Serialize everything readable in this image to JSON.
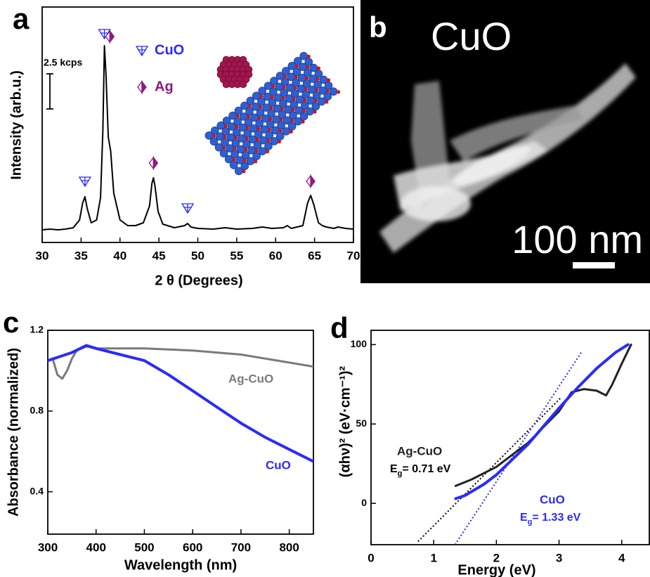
{
  "chart_data": [
    {
      "type": "line",
      "panel_label": "a",
      "x_label": "2 θ (Degrees)",
      "y_label": "Intensity (arb.u.)",
      "x": [
        30,
        31,
        32,
        33,
        34,
        34.8,
        35.2,
        35.5,
        35.8,
        36.3,
        37,
        37.5,
        37.8,
        38,
        38.2,
        38.5,
        38.8,
        39.2,
        40,
        41,
        42,
        43,
        43.8,
        44.1,
        44.3,
        44.5,
        44.9,
        45.5,
        47,
        48.3,
        48.7,
        49.1,
        50,
        52,
        53.5,
        55,
        57,
        58.3,
        59.5,
        61,
        61.5,
        62,
        63.5,
        64.1,
        64.5,
        64.9,
        65.5,
        66,
        66.5,
        67.5,
        68,
        69,
        70
      ],
      "values": [
        0.9,
        0.95,
        0.9,
        0.95,
        1.05,
        1.6,
        2.8,
        3.25,
        2.4,
        1.4,
        1.6,
        3.2,
        8,
        14,
        12,
        7.5,
        6.5,
        3.5,
        1.6,
        1.2,
        1.2,
        1.4,
        2.6,
        4.2,
        4.6,
        4.0,
        2.2,
        1.3,
        1.05,
        1.2,
        1.35,
        1.1,
        1.0,
        0.95,
        1.05,
        0.95,
        1.0,
        1.1,
        1.0,
        1.05,
        1.2,
        1.0,
        1.2,
        2.8,
        3.35,
        2.7,
        1.4,
        1.2,
        1.1,
        1.0,
        1.1,
        1.0,
        0.95
      ],
      "color": "#000000",
      "xlim": [
        30,
        70
      ],
      "xticks": [
        30,
        35,
        40,
        45,
        50,
        55,
        60,
        65,
        70
      ],
      "ylim": [
        0,
        16.75
      ],
      "scale_bar": {
        "label": "2.5 kcps",
        "value": 2.5
      },
      "legend": [
        {
          "name": "CuO",
          "color": "#2a2aff"
        },
        {
          "name": "Ag",
          "color": "#8e1a80"
        }
      ],
      "peak_markers": [
        {
          "phase": "CuO",
          "x": 35.5,
          "y": 4.35
        },
        {
          "phase": "CuO",
          "x": 38,
          "y": 14.85
        },
        {
          "phase": "Ag",
          "x": 38.7,
          "y": 14.65
        },
        {
          "phase": "Ag",
          "x": 44.3,
          "y": 5.65
        },
        {
          "phase": "CuO",
          "x": 48.7,
          "y": 2.45
        },
        {
          "phase": "Ag",
          "x": 64.5,
          "y": 4.35
        }
      ]
    },
    {
      "type": "line",
      "panel_label": "c",
      "x_label": "Wavelength (nm)",
      "y_label": "Absorbance (normalized)",
      "xlim": [
        300,
        850
      ],
      "xticks": [
        300,
        400,
        500,
        600,
        700,
        800
      ],
      "ylim": [
        0.19,
        1.2
      ],
      "yticks": [
        0.4,
        0.8,
        1.2
      ],
      "series": [
        {
          "name": "Ag-CuO",
          "color": "#7a7a7a",
          "x": [
            300,
            310,
            320,
            330,
            340,
            350,
            360,
            380,
            400,
            450,
            500,
            550,
            600,
            650,
            700,
            750,
            800,
            850
          ],
          "values": [
            1.05,
            1.06,
            0.98,
            0.96,
            1.0,
            1.06,
            1.1,
            1.12,
            1.11,
            1.11,
            1.11,
            1.105,
            1.1,
            1.09,
            1.08,
            1.06,
            1.04,
            1.02
          ]
        },
        {
          "name": "CuO",
          "color": "#2a2aff",
          "x": [
            300,
            350,
            380,
            400,
            450,
            500,
            550,
            600,
            650,
            700,
            750,
            800,
            850
          ],
          "values": [
            1.05,
            1.09,
            1.125,
            1.11,
            1.08,
            1.05,
            0.98,
            0.9,
            0.82,
            0.74,
            0.67,
            0.61,
            0.55
          ]
        }
      ]
    },
    {
      "type": "line",
      "panel_label": "d",
      "x_label": "Energy (eV)",
      "y_label": "(αhν)² (eV·cm⁻¹)²",
      "xlim": [
        0,
        4.44
      ],
      "xticks": [
        0,
        1,
        2,
        3,
        4
      ],
      "ylim": [
        -26,
        109
      ],
      "yticks": [
        0,
        50,
        100
      ],
      "series": [
        {
          "name": "Ag-CuO",
          "color": "#222222",
          "x": [
            1.35,
            1.6,
            2,
            2.5,
            3,
            3.2,
            3.4,
            3.6,
            3.75,
            3.85,
            4,
            4.15
          ],
          "values": [
            11,
            15,
            23,
            38,
            58,
            70,
            72,
            71,
            68,
            75,
            88,
            100
          ]
        },
        {
          "name": "CuO",
          "color": "#2a2aff",
          "x": [
            1.35,
            1.5,
            1.8,
            2,
            2.5,
            3,
            3.3,
            3.6,
            3.9,
            4.1
          ],
          "values": [
            3,
            5,
            12,
            18,
            37,
            60,
            73,
            85,
            95,
            100
          ]
        }
      ],
      "fits": [
        {
          "color": "#000000",
          "x": [
            0.75,
            3.04
          ],
          "values": [
            -24,
            67
          ]
        },
        {
          "color": "#2a2aff",
          "x": [
            1.34,
            3.37
          ],
          "values": [
            -26,
            96
          ]
        }
      ],
      "annotations": [
        {
          "symbol": "E",
          "subscript": "g",
          "text": "= 0.71 eV",
          "color": "#000000"
        },
        {
          "symbol": "E",
          "subscript": "g",
          "text": "= 1.33 eV",
          "color": "#2a2aff"
        }
      ]
    }
  ],
  "image_panel": {
    "panel_label": "b",
    "title": "CuO",
    "scale_bar_label": "100 nm"
  }
}
